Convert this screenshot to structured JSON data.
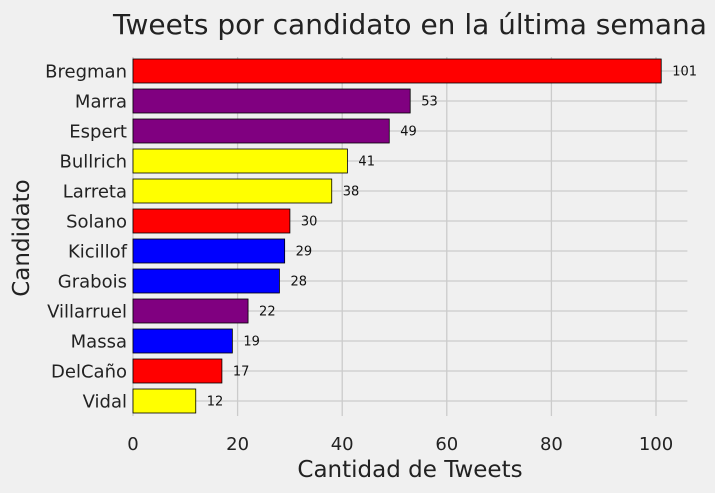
{
  "chart_data": {
    "type": "bar",
    "orientation": "horizontal",
    "title": "Tweets por candidato en la última semana",
    "xlabel": "Cantidad de Tweets",
    "ylabel": "Candidato",
    "xlim": [
      0,
      106
    ],
    "xticks": [
      0,
      20,
      40,
      60,
      80,
      100
    ],
    "grid": true,
    "bars": [
      {
        "label": "Bregman",
        "value": 101,
        "color": "#ff0000"
      },
      {
        "label": "Marra",
        "value": 53,
        "color": "#800080"
      },
      {
        "label": "Espert",
        "value": 49,
        "color": "#800080"
      },
      {
        "label": "Bullrich",
        "value": 41,
        "color": "#ffff00"
      },
      {
        "label": "Larreta",
        "value": 38,
        "color": "#ffff00"
      },
      {
        "label": "Solano",
        "value": 30,
        "color": "#ff0000"
      },
      {
        "label": "Kicillof",
        "value": 29,
        "color": "#0000ff"
      },
      {
        "label": "Grabois",
        "value": 28,
        "color": "#0000ff"
      },
      {
        "label": "Villarruel",
        "value": 22,
        "color": "#800080"
      },
      {
        "label": "Massa",
        "value": 19,
        "color": "#0000ff"
      },
      {
        "label": "DelCaño",
        "value": 17,
        "color": "#ff0000"
      },
      {
        "label": "Vidal",
        "value": 12,
        "color": "#ffff00"
      }
    ]
  }
}
